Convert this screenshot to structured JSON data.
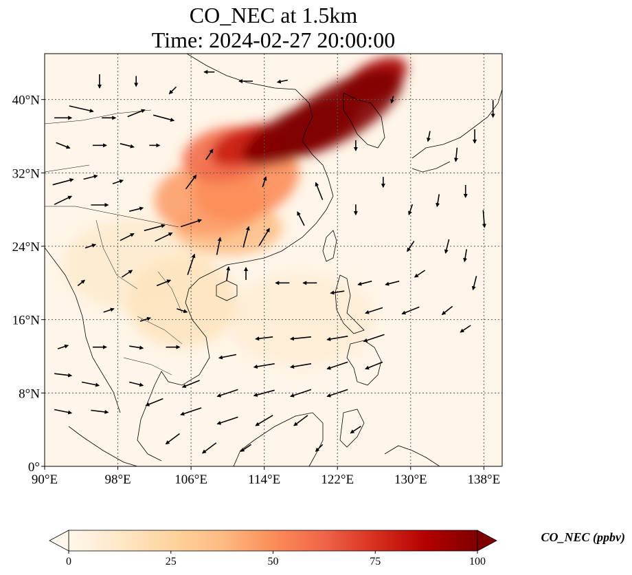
{
  "title": {
    "line1": "CO_NEC at 1.5km",
    "line2": "Time: 2024-02-27 20:00:00"
  },
  "map": {
    "lon_range": [
      90,
      140
    ],
    "lat_range": [
      0,
      45
    ],
    "lon_ticks": [
      {
        "value": 90,
        "label": "90°E"
      },
      {
        "value": 98,
        "label": "98°E"
      },
      {
        "value": 106,
        "label": "106°E"
      },
      {
        "value": 114,
        "label": "114°E"
      },
      {
        "value": 122,
        "label": "122°E"
      },
      {
        "value": 130,
        "label": "130°E"
      },
      {
        "value": 138,
        "label": "138°E"
      }
    ],
    "lat_ticks": [
      {
        "value": 0,
        "label": "0°"
      },
      {
        "value": 8,
        "label": "8°N"
      },
      {
        "value": 16,
        "label": "16°N"
      },
      {
        "value": 24,
        "label": "24°N"
      },
      {
        "value": 32,
        "label": "32°N"
      },
      {
        "value": 40,
        "label": "40°N"
      }
    ],
    "gridlines": true,
    "field": "CO_NEC",
    "level": "1.5km"
  },
  "colorbar": {
    "label": "CO_NEC (ppbv)",
    "min": 0,
    "max": 100,
    "ticks": [
      {
        "value": 0,
        "label": "0"
      },
      {
        "value": 25,
        "label": "25"
      },
      {
        "value": 50,
        "label": "50"
      },
      {
        "value": 75,
        "label": "75"
      },
      {
        "value": 100,
        "label": "100"
      }
    ],
    "colormap": [
      "#fff7ec",
      "#fee8c8",
      "#fdd49e",
      "#fdbb84",
      "#fc8d59",
      "#ef6548",
      "#d7301f",
      "#b30000",
      "#7f0000"
    ],
    "extend": "both"
  },
  "plumes": [
    {
      "lon": 122,
      "lat": 38.5,
      "rx": 8,
      "ry": 3,
      "rot": -30,
      "value": 100
    },
    {
      "lon": 118,
      "lat": 36.5,
      "rx": 7,
      "ry": 2.5,
      "rot": -25,
      "value": 100
    },
    {
      "lon": 126,
      "lat": 42,
      "rx": 4,
      "ry": 2,
      "rot": -30,
      "value": 90
    },
    {
      "lon": 110,
      "lat": 34,
      "rx": 5,
      "ry": 3,
      "rot": -10,
      "value": 60
    },
    {
      "lon": 108,
      "lat": 29,
      "rx": 6,
      "ry": 4,
      "rot": 0,
      "value": 45
    },
    {
      "lon": 112,
      "lat": 31,
      "rx": 6,
      "ry": 4,
      "rot": -20,
      "value": 50
    },
    {
      "lon": 110,
      "lat": 26,
      "rx": 6,
      "ry": 3,
      "rot": 0,
      "value": 35
    },
    {
      "lon": 112,
      "lat": 35,
      "rx": 4,
      "ry": 2,
      "rot": -20,
      "value": 80
    },
    {
      "lon": 105,
      "lat": 18,
      "rx": 6,
      "ry": 5,
      "rot": 0,
      "value": 15
    },
    {
      "lon": 100,
      "lat": 22,
      "rx": 8,
      "ry": 5,
      "rot": 0,
      "value": 10
    },
    {
      "lon": 118,
      "lat": 16,
      "rx": 8,
      "ry": 5,
      "rot": 0,
      "value": 8
    }
  ],
  "wind_vectors": [
    {
      "lon": 92,
      "lat": 38,
      "u": 2.5,
      "v": 0
    },
    {
      "lon": 94,
      "lat": 39,
      "u": 3.5,
      "v": -0.8
    },
    {
      "lon": 97,
      "lat": 38,
      "u": 2,
      "v": 0
    },
    {
      "lon": 100,
      "lat": 38.5,
      "u": 2.5,
      "v": 1
    },
    {
      "lon": 103,
      "lat": 38,
      "u": 3,
      "v": -0.8
    },
    {
      "lon": 92,
      "lat": 35,
      "u": 2,
      "v": -0.8
    },
    {
      "lon": 96,
      "lat": 35,
      "u": 2,
      "v": 0
    },
    {
      "lon": 99,
      "lat": 35,
      "u": 2,
      "v": -0.5
    },
    {
      "lon": 102,
      "lat": 35,
      "u": 1.5,
      "v": 0
    },
    {
      "lon": 92,
      "lat": 31,
      "u": 3,
      "v": 0.8
    },
    {
      "lon": 95,
      "lat": 31.5,
      "u": 2,
      "v": 0.5
    },
    {
      "lon": 98,
      "lat": 31,
      "u": 1.5,
      "v": 0.5
    },
    {
      "lon": 92,
      "lat": 29,
      "u": 2.5,
      "v": 1.2
    },
    {
      "lon": 96,
      "lat": 28.5,
      "u": 2.5,
      "v": 0
    },
    {
      "lon": 100,
      "lat": 28,
      "u": 2,
      "v": 0.5
    },
    {
      "lon": 102,
      "lat": 26,
      "u": 3,
      "v": 0.8
    },
    {
      "lon": 106,
      "lat": 26.5,
      "u": 3,
      "v": 1
    },
    {
      "lon": 99,
      "lat": 25,
      "u": 2,
      "v": 1
    },
    {
      "lon": 103,
      "lat": 25,
      "u": 2.5,
      "v": 1.2
    },
    {
      "lon": 106,
      "lat": 22,
      "u": 1,
      "v": 3
    },
    {
      "lon": 109,
      "lat": 24,
      "u": 0.5,
      "v": 2.5
    },
    {
      "lon": 112,
      "lat": 25,
      "u": 0.8,
      "v": 3
    },
    {
      "lon": 114,
      "lat": 25,
      "u": 1.5,
      "v": 2.5
    },
    {
      "lon": 110,
      "lat": 21,
      "u": 0.3,
      "v": 2
    },
    {
      "lon": 112,
      "lat": 21,
      "u": 0,
      "v": 1.8
    },
    {
      "lon": 95,
      "lat": 24,
      "u": 1.5,
      "v": 0.5
    },
    {
      "lon": 94,
      "lat": 20,
      "u": 1,
      "v": 0.8
    },
    {
      "lon": 99,
      "lat": 21,
      "u": 1.5,
      "v": 1
    },
    {
      "lon": 103,
      "lat": 20,
      "u": 2,
      "v": 0.8
    },
    {
      "lon": 97,
      "lat": 17,
      "u": 1.5,
      "v": 0.5
    },
    {
      "lon": 101,
      "lat": 16,
      "u": 1.5,
      "v": 0.5
    },
    {
      "lon": 105,
      "lat": 17,
      "u": 1.5,
      "v": -0.5
    },
    {
      "lon": 116,
      "lat": 20,
      "u": -2,
      "v": 0
    },
    {
      "lon": 119,
      "lat": 20,
      "u": -2,
      "v": 0
    },
    {
      "lon": 122,
      "lat": 19,
      "u": -2,
      "v": -0.3
    },
    {
      "lon": 125,
      "lat": 20,
      "u": -2,
      "v": -0.5
    },
    {
      "lon": 128,
      "lat": 20,
      "u": -2,
      "v": -0.5
    },
    {
      "lon": 131,
      "lat": 21,
      "u": -1.5,
      "v": -1
    },
    {
      "lon": 126,
      "lat": 17,
      "u": -2.5,
      "v": -0.8
    },
    {
      "lon": 130,
      "lat": 17,
      "u": -2.5,
      "v": -1
    },
    {
      "lon": 134,
      "lat": 17,
      "u": -1.5,
      "v": -1.2
    },
    {
      "lon": 114,
      "lat": 14,
      "u": -2.5,
      "v": -0.3
    },
    {
      "lon": 118,
      "lat": 14,
      "u": -3,
      "v": -0.3
    },
    {
      "lon": 122,
      "lat": 14,
      "u": -3,
      "v": -0.5
    },
    {
      "lon": 126,
      "lat": 14,
      "u": -3,
      "v": -1
    },
    {
      "lon": 110,
      "lat": 12,
      "u": -2.5,
      "v": -0.5
    },
    {
      "lon": 114,
      "lat": 11,
      "u": -3,
      "v": -0.5
    },
    {
      "lon": 118,
      "lat": 11,
      "u": -3,
      "v": -0.5
    },
    {
      "lon": 122,
      "lat": 11,
      "u": -3,
      "v": -1
    },
    {
      "lon": 126,
      "lat": 11,
      "u": -2.5,
      "v": -1
    },
    {
      "lon": 106,
      "lat": 9,
      "u": -2.5,
      "v": -1
    },
    {
      "lon": 110,
      "lat": 8,
      "u": -3,
      "v": -1
    },
    {
      "lon": 114,
      "lat": 8,
      "u": -3,
      "v": -0.8
    },
    {
      "lon": 118,
      "lat": 8,
      "u": -3,
      "v": -1
    },
    {
      "lon": 122,
      "lat": 8,
      "u": -3,
      "v": -1
    },
    {
      "lon": 102,
      "lat": 7,
      "u": -2.5,
      "v": -1
    },
    {
      "lon": 106,
      "lat": 6,
      "u": -3,
      "v": -1
    },
    {
      "lon": 110,
      "lat": 5,
      "u": -3,
      "v": -1
    },
    {
      "lon": 114,
      "lat": 5,
      "u": -2.5,
      "v": -1.5
    },
    {
      "lon": 118,
      "lat": 5,
      "u": -2,
      "v": -1.5
    },
    {
      "lon": 92,
      "lat": 10,
      "u": 2.5,
      "v": -0.3
    },
    {
      "lon": 95,
      "lat": 9,
      "u": 2.5,
      "v": -0.5
    },
    {
      "lon": 92,
      "lat": 6,
      "u": 2.5,
      "v": -0.5
    },
    {
      "lon": 96,
      "lat": 6,
      "u": 2.5,
      "v": -0.3
    },
    {
      "lon": 100,
      "lat": 9,
      "u": 2,
      "v": -0.5
    },
    {
      "lon": 92,
      "lat": 13,
      "u": 1.5,
      "v": 0.5
    },
    {
      "lon": 96,
      "lat": 13,
      "u": 2,
      "v": 0
    },
    {
      "lon": 100,
      "lat": 13,
      "u": 2,
      "v": -0.3
    },
    {
      "lon": 104,
      "lat": 13,
      "u": 2,
      "v": 0
    },
    {
      "lon": 104,
      "lat": 3,
      "u": -2,
      "v": -1.5
    },
    {
      "lon": 108,
      "lat": 2,
      "u": -2,
      "v": -1.5
    },
    {
      "lon": 112,
      "lat": 2,
      "u": -1.5,
      "v": -1
    },
    {
      "lon": 120,
      "lat": 2,
      "u": -1,
      "v": -1
    },
    {
      "lon": 124,
      "lat": 4,
      "u": -1.5,
      "v": -1
    },
    {
      "lon": 120,
      "lat": 30,
      "u": -1,
      "v": 2.5
    },
    {
      "lon": 118,
      "lat": 27,
      "u": -1,
      "v": 2
    },
    {
      "lon": 124,
      "lat": 28,
      "u": 0,
      "v": -1.5
    },
    {
      "lon": 127,
      "lat": 31,
      "u": 0,
      "v": -1.5
    },
    {
      "lon": 130,
      "lat": 28,
      "u": -0.5,
      "v": -1.5
    },
    {
      "lon": 133,
      "lat": 29,
      "u": -0.3,
      "v": -1.8
    },
    {
      "lon": 136,
      "lat": 30,
      "u": 0,
      "v": -1.8
    },
    {
      "lon": 130,
      "lat": 24,
      "u": -1,
      "v": -1.5
    },
    {
      "lon": 134,
      "lat": 24,
      "u": -0.5,
      "v": -2
    },
    {
      "lon": 136,
      "lat": 23,
      "u": -0.3,
      "v": -1.8
    },
    {
      "lon": 138,
      "lat": 27,
      "u": 0.2,
      "v": -2.5
    },
    {
      "lon": 139,
      "lat": 39,
      "u": 0,
      "v": -2.5
    },
    {
      "lon": 137,
      "lat": 36,
      "u": 0,
      "v": -2
    },
    {
      "lon": 135,
      "lat": 34,
      "u": -0.2,
      "v": -2
    },
    {
      "lon": 132,
      "lat": 36,
      "u": -0.3,
      "v": -1.5
    },
    {
      "lon": 128,
      "lat": 40,
      "u": -0.3,
      "v": -1
    },
    {
      "lon": 124,
      "lat": 35,
      "u": 0,
      "v": -1.5
    },
    {
      "lon": 136,
      "lat": 15,
      "u": -1.5,
      "v": -1
    },
    {
      "lon": 137,
      "lat": 20,
      "u": -0.5,
      "v": -2
    },
    {
      "lon": 108,
      "lat": 43,
      "u": -1.5,
      "v": 0
    },
    {
      "lon": 112,
      "lat": 42,
      "u": -2,
      "v": 0
    },
    {
      "lon": 116,
      "lat": 42,
      "u": -1.5,
      "v": -0.3
    },
    {
      "lon": 104,
      "lat": 41,
      "u": -1,
      "v": -1
    },
    {
      "lon": 100,
      "lat": 42,
      "u": 0,
      "v": -1.5
    },
    {
      "lon": 96,
      "lat": 42,
      "u": 0,
      "v": -2
    },
    {
      "lon": 106,
      "lat": 31,
      "u": 1.5,
      "v": 2
    },
    {
      "lon": 108,
      "lat": 34,
      "u": 1,
      "v": 1.5
    },
    {
      "lon": 114,
      "lat": 31,
      "u": 0.5,
      "v": 1.5
    }
  ]
}
